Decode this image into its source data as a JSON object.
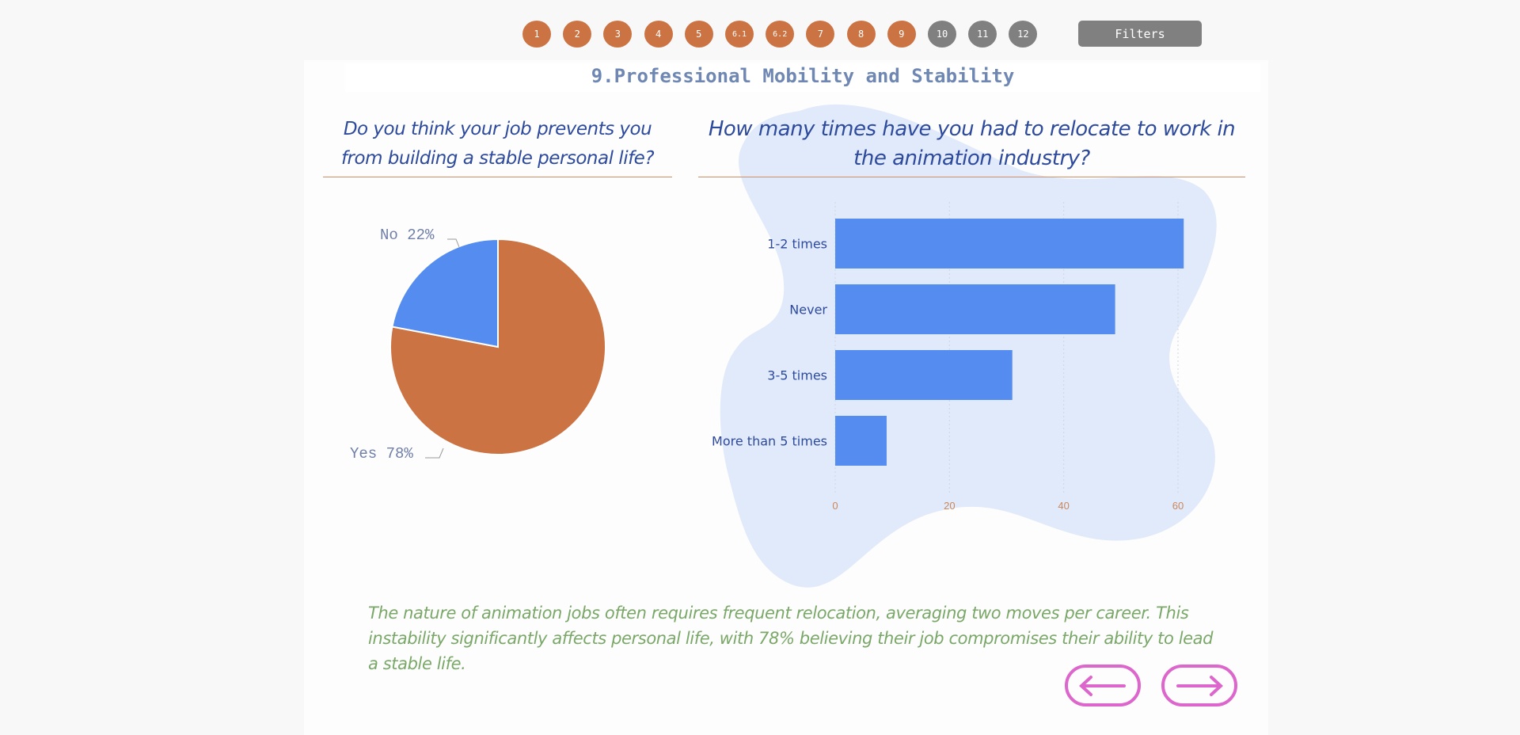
{
  "nav": {
    "pages": [
      {
        "label": "1",
        "state": "done"
      },
      {
        "label": "2",
        "state": "done"
      },
      {
        "label": "3",
        "state": "done"
      },
      {
        "label": "4",
        "state": "done"
      },
      {
        "label": "5",
        "state": "done"
      },
      {
        "label": "6.1",
        "state": "done"
      },
      {
        "label": "6.2",
        "state": "done"
      },
      {
        "label": "7",
        "state": "done"
      },
      {
        "label": "8",
        "state": "done"
      },
      {
        "label": "9",
        "state": "done"
      },
      {
        "label": "10",
        "state": "todo"
      },
      {
        "label": "11",
        "state": "todo"
      },
      {
        "label": "12",
        "state": "todo"
      }
    ],
    "filters_label": "Filters"
  },
  "page_title": "9.Professional Mobility and Stability",
  "questions": {
    "pie": "Do you think your job prevents you from building a stable personal life?",
    "bar": "How many times have you had to relocate to work in the animation industry?"
  },
  "chart_data": [
    {
      "type": "pie",
      "title": "Do you think your job prevents you from building a stable personal life?",
      "slices": [
        {
          "label": "Yes",
          "value": 78,
          "display": "Yes 78%",
          "color": "#cc7343"
        },
        {
          "label": "No",
          "value": 22,
          "display": "No 22%",
          "color": "#548cf0"
        }
      ]
    },
    {
      "type": "bar",
      "orientation": "horizontal",
      "title": "How many times have you had to relocate to work in the animation industry?",
      "categories": [
        "1-2 times",
        "Never",
        "3-5 times",
        "More than 5 times"
      ],
      "values": [
        61,
        49,
        31,
        9
      ],
      "xlim": [
        0,
        62
      ],
      "xticks": [
        "0",
        "20",
        "40",
        "60"
      ],
      "grid": true,
      "color": "#548cf0"
    }
  ],
  "summary": "The nature of animation jobs often requires frequent relocation, averaging two moves per career. This instability significantly affects personal life, with 78% believing their job compromises their ability to lead a stable life.",
  "colors": {
    "done": "#cc7343",
    "todo": "#808080",
    "accent": "#dd66cc"
  }
}
